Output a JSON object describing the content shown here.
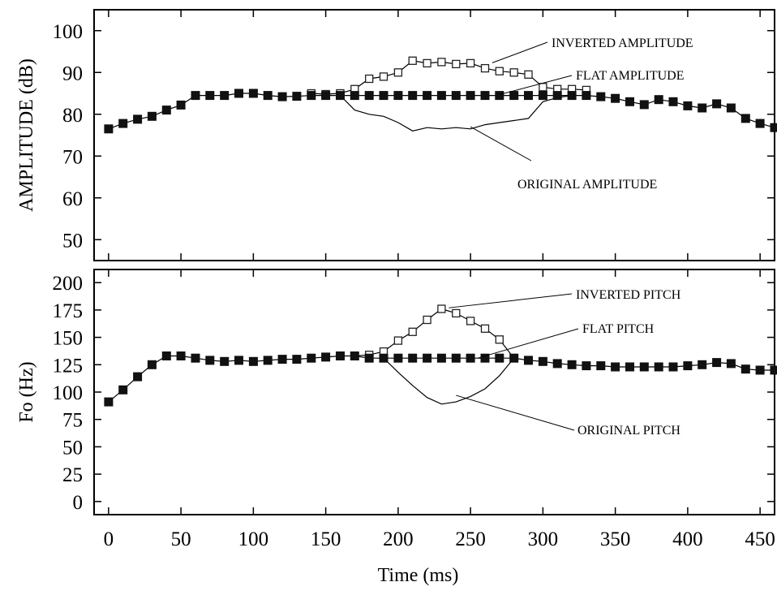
{
  "chart_data": [
    {
      "type": "line",
      "ylabel": "AMPLITUDE (dB)",
      "xlabel": "",
      "xlim": [
        -10,
        460
      ],
      "ylim": [
        45,
        105
      ],
      "yticks": [
        50,
        60,
        70,
        80,
        90,
        100
      ],
      "xticks": [
        0,
        50,
        100,
        150,
        200,
        250,
        300,
        350,
        400,
        450
      ],
      "series": [
        {
          "name": "FLAT AMPLITUDE",
          "marker": "filled-square",
          "x": [
            0,
            10,
            20,
            30,
            40,
            50,
            60,
            70,
            80,
            90,
            100,
            110,
            120,
            130,
            140,
            150,
            160,
            170,
            180,
            190,
            200,
            210,
            220,
            230,
            240,
            250,
            260,
            270,
            280,
            290,
            300,
            310,
            320,
            330,
            340,
            350,
            360,
            370,
            380,
            390,
            400,
            410,
            420,
            430,
            440,
            450,
            460
          ],
          "y": [
            76.5,
            77.8,
            78.8,
            79.5,
            81,
            82.2,
            84.5,
            84.5,
            84.5,
            85,
            85,
            84.5,
            84.2,
            84.3,
            84.5,
            84.5,
            84.5,
            84.5,
            84.5,
            84.5,
            84.5,
            84.5,
            84.5,
            84.5,
            84.5,
            84.5,
            84.5,
            84.5,
            84.5,
            84.5,
            84.5,
            84.5,
            84.5,
            84.5,
            84.2,
            83.8,
            83,
            82.3,
            83.5,
            83,
            82,
            81.5,
            82.5,
            81.5,
            79,
            77.8,
            76.8
          ]
        },
        {
          "name": "INVERTED AMPLITUDE",
          "marker": "open-square",
          "x": [
            140,
            150,
            160,
            170,
            180,
            190,
            200,
            210,
            220,
            230,
            240,
            250,
            260,
            270,
            280,
            290,
            300,
            310,
            320,
            330
          ],
          "y": [
            85,
            84.8,
            85,
            86,
            88.5,
            89,
            90,
            92.8,
            92.2,
            92.5,
            92,
            92.2,
            91,
            90.3,
            90,
            89.5,
            86.5,
            86,
            86,
            85.8
          ]
        },
        {
          "name": "ORIGINAL AMPLITUDE",
          "marker": "none",
          "x": [
            160,
            170,
            180,
            190,
            200,
            210,
            220,
            230,
            240,
            250,
            260,
            270,
            280,
            290,
            300,
            310,
            320
          ],
          "y": [
            84.5,
            81,
            80,
            79.5,
            78,
            76,
            76.8,
            76.5,
            76.8,
            76.5,
            77.5,
            78,
            78.5,
            79,
            83,
            84,
            84.5
          ]
        }
      ],
      "annotations": [
        {
          "text": "INVERTED AMPLITUDE",
          "x": 265,
          "y": 92.3
        },
        {
          "text": "FLAT AMPLITUDE",
          "x": 270,
          "y": 84.7
        },
        {
          "text": "ORIGINAL AMPLITUDE",
          "x": 250,
          "y": 77
        }
      ]
    },
    {
      "type": "line",
      "ylabel": "Fo (Hz)",
      "xlabel": "Time (ms)",
      "xlim": [
        -10,
        460
      ],
      "ylim": [
        -12,
        212
      ],
      "yticks": [
        0,
        25,
        50,
        75,
        100,
        125,
        150,
        175,
        200
      ],
      "xticks": [
        0,
        50,
        100,
        150,
        200,
        250,
        300,
        350,
        400,
        450
      ],
      "series": [
        {
          "name": "FLAT PITCH",
          "marker": "filled-square",
          "x": [
            0,
            10,
            20,
            30,
            40,
            50,
            60,
            70,
            80,
            90,
            100,
            110,
            120,
            130,
            140,
            150,
            160,
            170,
            180,
            190,
            200,
            210,
            220,
            230,
            240,
            250,
            260,
            270,
            280,
            290,
            300,
            310,
            320,
            330,
            340,
            350,
            360,
            370,
            380,
            390,
            400,
            410,
            420,
            430,
            440,
            450,
            460
          ],
          "y": [
            91,
            102,
            114,
            125,
            133,
            133,
            131,
            129,
            128,
            129,
            128,
            129,
            130,
            130,
            131,
            132,
            133,
            133,
            131,
            131,
            131,
            131,
            131,
            131,
            131,
            131,
            131,
            131,
            131,
            129,
            128,
            126,
            125,
            124,
            124,
            123,
            123,
            123,
            123,
            123,
            124,
            125,
            127,
            126,
            121,
            120,
            120
          ]
        },
        {
          "name": "INVERTED PITCH",
          "marker": "open-square",
          "x": [
            170,
            180,
            190,
            200,
            210,
            220,
            230,
            240,
            250,
            260,
            270,
            280
          ],
          "y": [
            133,
            134,
            137,
            147,
            155,
            166,
            176,
            172,
            165,
            158,
            148,
            131
          ]
        },
        {
          "name": "ORIGINAL PITCH",
          "marker": "none",
          "x": [
            190,
            200,
            210,
            220,
            230,
            240,
            250,
            260,
            270,
            280
          ],
          "y": [
            131,
            118,
            106,
            95,
            89,
            91,
            96,
            103,
            115,
            131
          ]
        }
      ],
      "annotations": [
        {
          "text": "INVERTED PITCH",
          "x": 235,
          "y": 177
        },
        {
          "text": "FLAT PITCH",
          "x": 255,
          "y": 131
        },
        {
          "text": "ORIGINAL PITCH",
          "x": 240,
          "y": 97
        }
      ]
    }
  ]
}
